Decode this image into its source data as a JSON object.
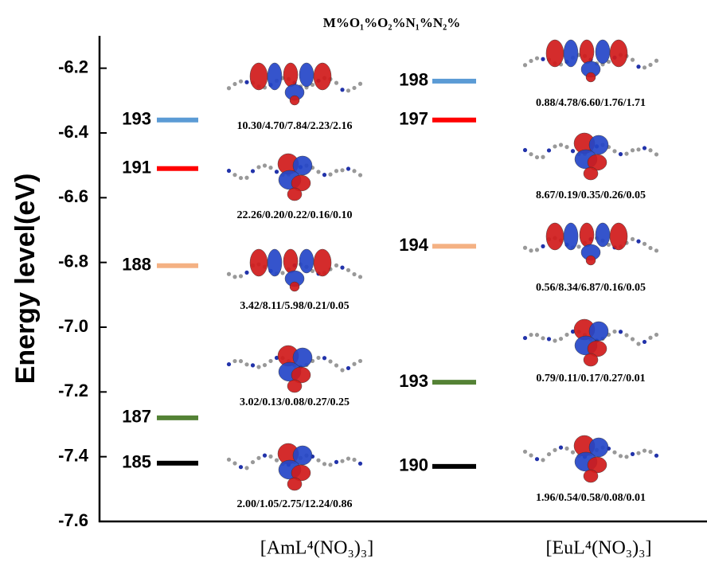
{
  "chart_data": {
    "type": "energy-level",
    "title": "M%O₁%O₂%N₁%N₂%",
    "ylabel": "Energy level(eV)",
    "ylim": [
      -7.6,
      -6.1
    ],
    "yticks": [
      -6.2,
      -6.4,
      -6.6,
      -6.8,
      {
        "value": -7,
        "label": "-7.0"
      },
      -7.2,
      -7.4,
      -7.6
    ],
    "groups": [
      {
        "name": "[AmL⁴(NO₃)₃]",
        "labels": [
          "193",
          "191",
          "188",
          "187",
          "185"
        ],
        "values": [
          -6.36,
          -6.51,
          -6.81,
          -7.28,
          -7.42
        ],
        "colors": [
          "#5b9bd5",
          "#ff0000",
          "#f4b183",
          "#548235",
          "#000000"
        ],
        "compositions": [
          "10.30/4.70/7.84/2.23/2.16",
          "22.26/0.20/0.22/0.16/0.10",
          "3.42/8.11/5.98/0.21/0.05",
          "3.02/0.13/0.08/0.27/0.25",
          "2.00/1.05/2.75/12.24/0.86"
        ]
      },
      {
        "name": "[EuL⁴(NO₃)₃]",
        "labels": [
          "198",
          "197",
          "194",
          "193",
          "190"
        ],
        "values": [
          -6.24,
          -6.36,
          -6.75,
          -7.17,
          -7.43
        ],
        "colors": [
          "#5b9bd5",
          "#ff0000",
          "#f4b183",
          "#548235",
          "#000000"
        ],
        "compositions": [
          "0.88/4.78/6.60/1.76/1.71",
          "8.67/0.19/0.35/0.26/0.05",
          "0.56/8.34/6.87/0.16/0.05",
          "0.79/0.11/0.17/0.27/0.01",
          "1.96/0.54/0.58/0.08/0.01"
        ]
      }
    ]
  }
}
